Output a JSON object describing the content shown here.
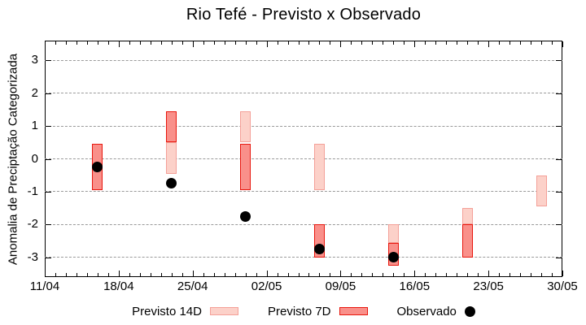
{
  "colors": {
    "previsto_14d_fill": "#fcd1c9",
    "previsto_14d_border": "#f4a098",
    "previsto_7d_fill": "#f9908a",
    "previsto_7d_border": "#e8170e",
    "observado": "#000000",
    "grid": "#9a9a9a",
    "axis": "#000000",
    "background": "#ffffff"
  },
  "chart_data": {
    "type": "bar",
    "title": "Rio Tefé - Previsto x Observado",
    "xlabel": "",
    "ylabel": "Anomalia de Preciptação Categorizada",
    "ylim": [
      -3.6,
      3.6
    ],
    "yticks": [
      3,
      2,
      1,
      0,
      -1,
      -2,
      -3
    ],
    "grid": "horizontal-dashed",
    "legend_position": "bottom-center",
    "x_axis": {
      "days_total": 49,
      "major_tick_every_days": 7,
      "minor_tick_every_days": 1,
      "tick_labels": [
        "11/04",
        "18/04",
        "25/04",
        "02/05",
        "09/05",
        "16/05",
        "23/05",
        "30/05"
      ]
    },
    "series": [
      {
        "name": "Previsto 14D",
        "type": "range-bar",
        "points": [
          {
            "date": "23/04",
            "day": 12,
            "low": -0.45,
            "high": 0.5
          },
          {
            "date": "30/04",
            "day": 19,
            "low": 0.5,
            "high": 1.45
          },
          {
            "date": "07/05",
            "day": 26,
            "low": -0.95,
            "high": 0.45
          },
          {
            "date": "14/05",
            "day": 33,
            "low": -2.55,
            "high": -2.0
          },
          {
            "date": "21/05",
            "day": 40,
            "low": -2.0,
            "high": -1.5
          },
          {
            "date": "28/05",
            "day": 47,
            "low": -1.45,
            "high": -0.5
          }
        ]
      },
      {
        "name": "Previsto 7D",
        "type": "range-bar",
        "points": [
          {
            "date": "16/04",
            "day": 5,
            "low": -0.95,
            "high": 0.45
          },
          {
            "date": "23/04",
            "day": 12,
            "low": 0.5,
            "high": 1.45
          },
          {
            "date": "30/04",
            "day": 19,
            "low": -0.95,
            "high": 0.45
          },
          {
            "date": "07/05",
            "day": 26,
            "low": -3.0,
            "high": -2.0
          },
          {
            "date": "14/05",
            "day": 33,
            "low": -3.25,
            "high": -2.55
          },
          {
            "date": "21/05",
            "day": 40,
            "low": -3.0,
            "high": -2.0
          }
        ]
      },
      {
        "name": "Observado",
        "type": "scatter",
        "points": [
          {
            "date": "16/04",
            "day": 5,
            "value": -0.25
          },
          {
            "date": "23/04",
            "day": 12,
            "value": -0.75
          },
          {
            "date": "30/04",
            "day": 19,
            "value": -1.75
          },
          {
            "date": "07/05",
            "day": 26,
            "value": -2.75
          },
          {
            "date": "14/05",
            "day": 33,
            "value": -3.0
          }
        ]
      }
    ]
  },
  "legend": {
    "items": [
      {
        "label": "Previsto 14D",
        "swatch": "box-14d"
      },
      {
        "label": "Previsto 7D",
        "swatch": "box-7d"
      },
      {
        "label": "Observado",
        "swatch": "dot"
      }
    ]
  }
}
